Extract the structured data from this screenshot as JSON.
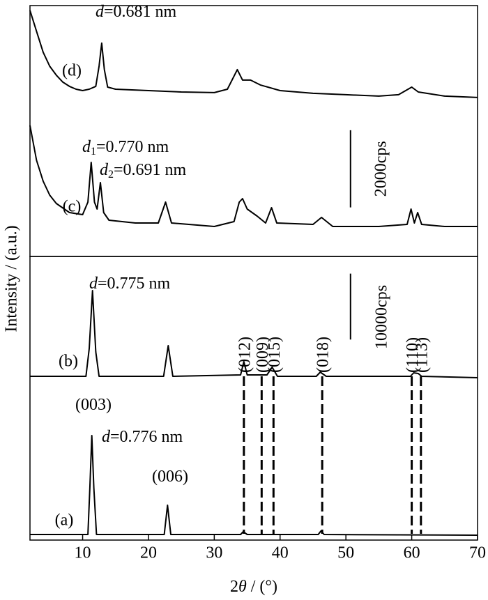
{
  "chart_data": {
    "type": "line",
    "ylabel": "Intensity / (a.u.)",
    "xlabel": {
      "prefix": "2",
      "symbol": "θ",
      "suffix": " / (°)"
    },
    "xlim": [
      2,
      70
    ],
    "xticks": [
      10,
      20,
      30,
      40,
      50,
      60,
      70
    ],
    "panels": [
      {
        "ylim": [
          0,
          6500
        ],
        "series": [
          {
            "name": "(d)",
            "color": "#000000",
            "x": [
              2,
              3,
              4,
              5,
              6,
              7,
              8,
              9,
              10,
              11,
              12,
              12.5,
              12.9,
              13.3,
              13.8,
              15,
              20,
              25,
              30,
              32,
              33.5,
              34.3,
              35.5,
              37,
              40,
              45,
              50,
              55,
              58,
              60,
              61,
              65,
              70
            ],
            "values": [
              6375,
              5833,
              5292,
              4930,
              4696,
              4515,
              4407,
              4334,
              4298,
              4334,
              4407,
              4930,
              5526,
              4840,
              4388,
              4334,
              4298,
              4262,
              4244,
              4334,
              4840,
              4569,
              4569,
              4443,
              4298,
              4226,
              4190,
              4154,
              4190,
              4388,
              4262,
              4154,
              4118
            ]
          },
          {
            "name": "(c)",
            "color": "#000000",
            "x": [
              2,
              3,
              4,
              5,
              6,
              8,
              10,
              10.8,
              11.3,
              11.8,
              12.2,
              12.7,
              13.2,
              14,
              18,
              21.5,
              22.6,
              23.5,
              30,
              33,
              33.8,
              34.3,
              35,
              36.5,
              37.8,
              38.7,
              39.5,
              45,
              46.3,
              48,
              55,
              59.3,
              59.9,
              60.4,
              60.9,
              61.5,
              65,
              70
            ],
            "values": [
              3395,
              2492,
              1950,
              1589,
              1373,
              1138,
              1084,
              1409,
              2438,
              1409,
              1228,
              1914,
              1138,
              939,
              867,
              867,
              1409,
              867,
              777,
              903,
              1409,
              1499,
              1228,
              1047,
              867,
              1264,
              867,
              831,
              1011,
              777,
              777,
              831,
              1228,
              867,
              1138,
              831,
              777,
              777
            ]
          }
        ],
        "scale_bar": {
          "x": 50.7,
          "y": 1270,
          "value": 2000,
          "label": "2000cps"
        },
        "annotations": [
          {
            "symbol": "d",
            "text": "=0.681 nm"
          },
          {
            "symbol": "d",
            "subscript": "1",
            "text": "=0.770 nm"
          },
          {
            "symbol": "d",
            "subscript": "2",
            "text": "=0.691 nm"
          }
        ]
      },
      {
        "ylim": [
          0,
          43000
        ],
        "series": [
          {
            "name": "(b)",
            "color": "#000000",
            "x": [
              2,
              10.5,
              11,
              11.5,
              12,
              12.5,
              22.3,
              23,
              23.7,
              34,
              34.5,
              35,
              38,
              38.8,
              39.6,
              45.5,
              46.1,
              47,
              59.8,
              60.3,
              61,
              61.5,
              70
            ],
            "values": [
              24828,
              24828,
              29054,
              37823,
              28526,
              24828,
              24828,
              29477,
              24828,
              25039,
              27047,
              25039,
              25039,
              26202,
              24828,
              24828,
              25462,
              24828,
              24828,
              25357,
              25250,
              24828,
              24616
            ]
          },
          {
            "name": "(a)",
            "color": "#000000",
            "x": [
              2,
              10.8,
              11.1,
              11.4,
              11.7,
              12.1,
              22.4,
              22.9,
              23.4,
              34,
              34.4,
              35,
              45.8,
              46.2,
              46.7,
              70
            ],
            "values": [
              845,
              845,
              7924,
              15848,
              7924,
              845,
              845,
              5283,
              845,
              845,
              1268,
              845,
              845,
              1373,
              845,
              740
            ]
          }
        ],
        "scale_bar": {
          "x": 50.7,
          "y": 30400,
          "value": 10000,
          "label": "10000cps"
        },
        "annotations": [
          {
            "symbol": "d",
            "text": "=0.775 nm"
          },
          {
            "text": "(003)"
          },
          {
            "symbol": "d",
            "text": "=0.776 nm"
          },
          {
            "text": "(006)"
          }
        ],
        "references": [
          {
            "x": 34.5,
            "label": "(012)"
          },
          {
            "x": 37.2,
            "label": "(009)"
          },
          {
            "x": 39.0,
            "label": "(015)"
          },
          {
            "x": 46.4,
            "label": "(018)"
          },
          {
            "x": 60.0,
            "label": "(110)"
          },
          {
            "x": 61.4,
            "label": "(113)"
          }
        ]
      }
    ]
  }
}
